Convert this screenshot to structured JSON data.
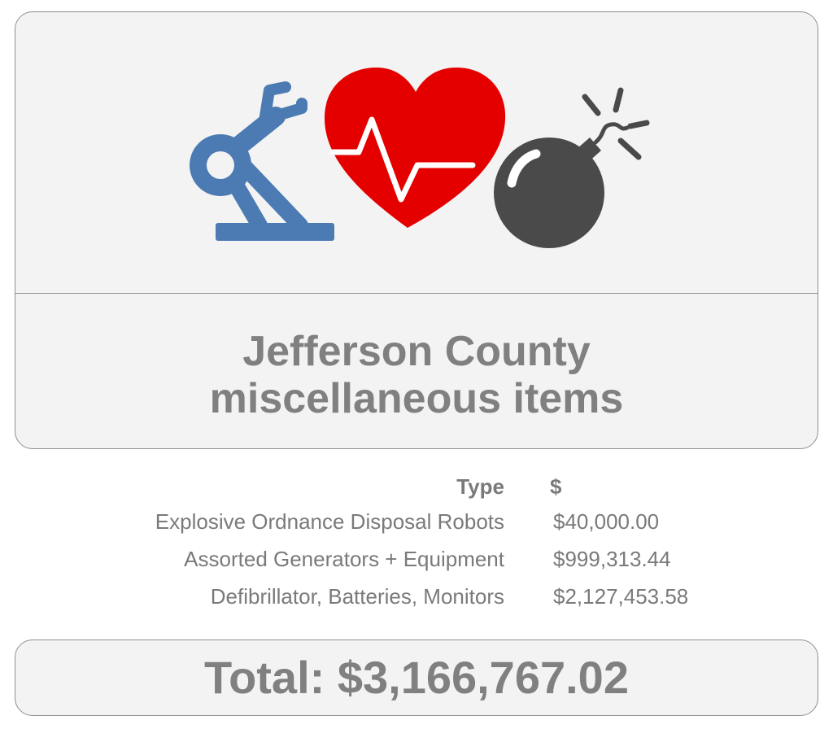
{
  "header": {
    "title_line1": "Jefferson County",
    "title_line2": "miscellaneous items"
  },
  "icons": [
    {
      "name": "robot-arm-icon",
      "color": "#4c7bb3"
    },
    {
      "name": "heart-pulse-icon",
      "color": "#e50000"
    },
    {
      "name": "bomb-icon",
      "color": "#4a4a4a"
    }
  ],
  "table": {
    "headers": [
      "Type",
      "$"
    ],
    "rows": [
      {
        "type": "Explosive Ordnance Disposal Robots",
        "amount": "$40,000.00"
      },
      {
        "type": "Assorted Generators + Equipment",
        "amount": "$999,313.44"
      },
      {
        "type": "Defibrillator, Batteries, Monitors",
        "amount": "$2,127,453.58"
      }
    ]
  },
  "total": {
    "label": "Total: ",
    "value": "$3,166,767.02"
  }
}
